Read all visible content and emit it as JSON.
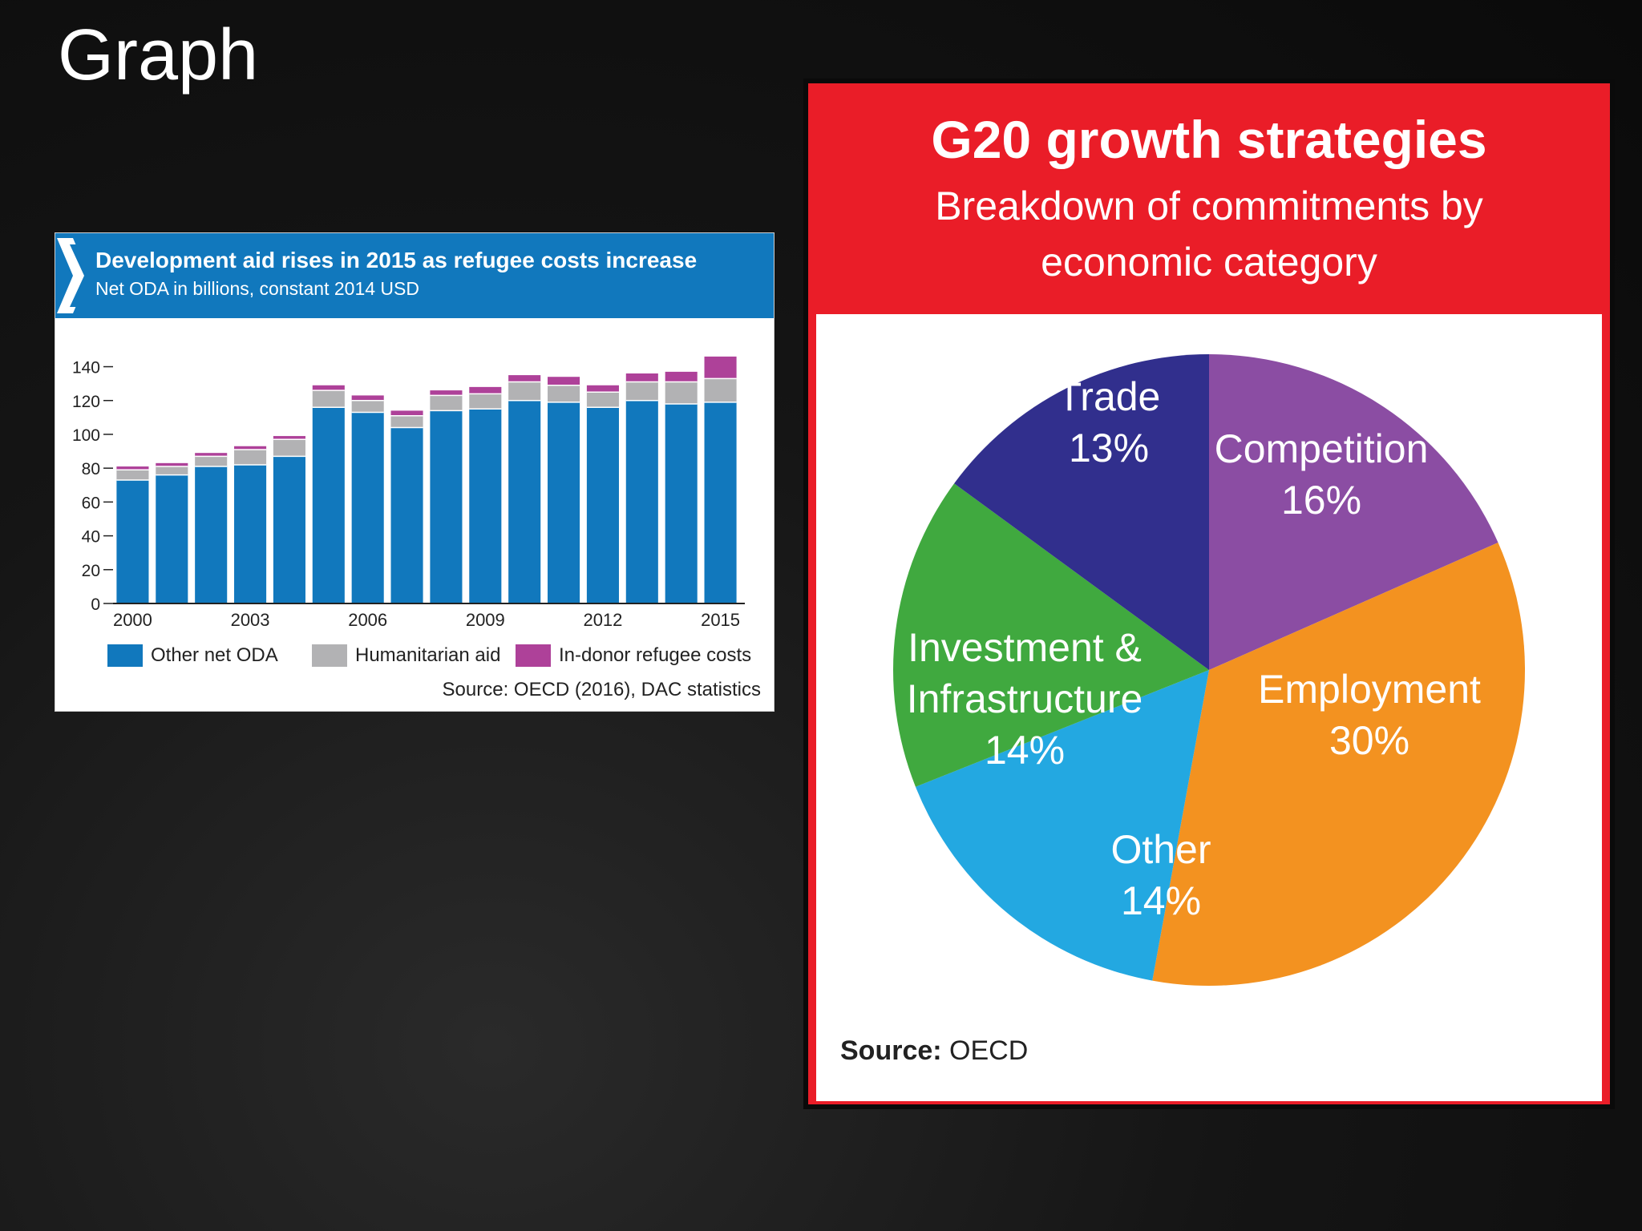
{
  "slide": {
    "title": "Graph"
  },
  "chart_data": [
    {
      "type": "bar",
      "stacked": true,
      "title": "Development aid rises in 2015 as refugee costs increase",
      "subtitle": "Net ODA in billions, constant 2014 USD",
      "source": "Source: OECD (2016), DAC statistics",
      "categories": [
        "2000",
        "2001",
        "2002",
        "2003",
        "2004",
        "2005",
        "2006",
        "2007",
        "2008",
        "2009",
        "2010",
        "2011",
        "2012",
        "2013",
        "2014",
        "2015"
      ],
      "x_tick_labels": [
        "2000",
        "2003",
        "2006",
        "2009",
        "2012",
        "2015"
      ],
      "y_tick_labels": [
        "0",
        "20",
        "40",
        "60",
        "80",
        "100",
        "120",
        "140"
      ],
      "ylim": [
        0,
        145
      ],
      "legend_position": "bottom",
      "series": [
        {
          "name": "Other net ODA",
          "color": "#1178bd",
          "values": [
            73,
            76,
            81,
            82,
            87,
            116,
            113,
            104,
            114,
            115,
            120,
            119,
            116,
            120,
            118,
            119
          ]
        },
        {
          "name": "Humanitarian aid",
          "color": "#b2b2b4",
          "values": [
            6,
            5,
            6,
            9,
            10,
            10,
            7,
            7,
            9,
            9,
            11,
            10,
            9,
            11,
            13,
            14
          ]
        },
        {
          "name": "In-donor refugee costs",
          "color": "#ae4199",
          "values": [
            2,
            2,
            2,
            2,
            2,
            3,
            3,
            3,
            3,
            4,
            4,
            5,
            4,
            5,
            6,
            13
          ]
        }
      ]
    },
    {
      "type": "pie",
      "title": "G20 growth strategies",
      "subtitle": "Breakdown of commitments by economic category",
      "source_label": "Source:",
      "source_value": "OECD",
      "slices": [
        {
          "label": "Competition",
          "value": 16,
          "value_label": "16%",
          "color": "#8b4da3"
        },
        {
          "label": "Employment",
          "value": 30,
          "value_label": "30%",
          "color": "#f39220"
        },
        {
          "label": "Other",
          "value": 14,
          "value_label": "14%",
          "color": "#23a8e1"
        },
        {
          "label": "Investment & Infrastructure",
          "value": 14,
          "value_label": "14%",
          "color": "#40a93f"
        },
        {
          "label": "Trade",
          "value": 13,
          "value_label": "13%",
          "color": "#312f8d"
        }
      ]
    }
  ]
}
